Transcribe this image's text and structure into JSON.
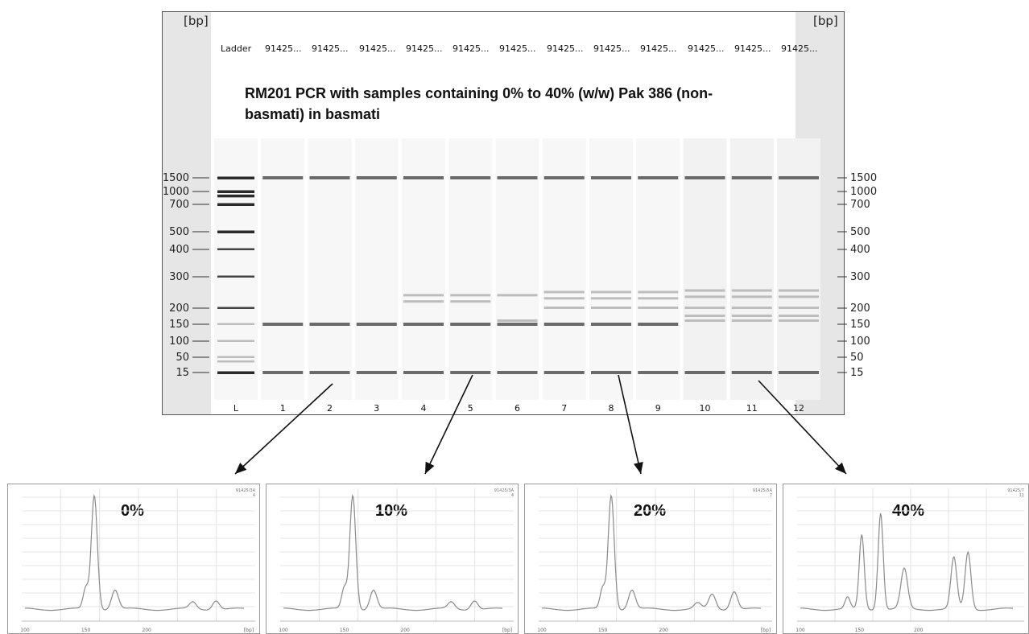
{
  "gel": {
    "unit_left": "[bp]",
    "unit_right": "[bp]",
    "header": [
      "Ladder",
      "91425...",
      "91425...",
      "91425...",
      "91425...",
      "91425...",
      "91425...",
      "91425...",
      "91425...",
      "91425...",
      "91425...",
      "91425...",
      "91425..."
    ],
    "title": "RM201 PCR with samples containing 0% to 40% (w/w) Pak 386 (non-basmati) in basmati",
    "title_line1": "RM201 PCR with samples containing 0% to 40% (w/w) Pak 386 (non-",
    "title_line2": "basmati) in basmati",
    "size_markers_bp": [
      1500,
      1000,
      700,
      500,
      400,
      300,
      200,
      150,
      100,
      50,
      15
    ],
    "size_labels": [
      "1500",
      "1000",
      "700",
      "500",
      "400",
      "300",
      "200",
      "150",
      "100",
      "50",
      "15"
    ],
    "lane_labels": [
      "L",
      "1",
      "2",
      "3",
      "4",
      "5",
      "6",
      "7",
      "8",
      "9",
      "10",
      "11",
      "12"
    ],
    "ladder_bands_bp": [
      1500,
      1000,
      900,
      700,
      500,
      400,
      300,
      200,
      150,
      100,
      50,
      40,
      15
    ],
    "lane_bands_bp": [
      [
        1500,
        150,
        15
      ],
      [
        1500,
        150,
        15
      ],
      [
        1500,
        150,
        15
      ],
      [
        1500,
        240,
        220,
        150,
        15
      ],
      [
        1500,
        240,
        220,
        150,
        15
      ],
      [
        1500,
        240,
        160,
        150,
        15
      ],
      [
        1500,
        250,
        230,
        200,
        150,
        15
      ],
      [
        1500,
        250,
        230,
        200,
        150,
        15
      ],
      [
        1500,
        250,
        230,
        200,
        150,
        15
      ],
      [
        1500,
        255,
        235,
        200,
        175,
        160,
        15
      ],
      [
        1500,
        255,
        235,
        200,
        175,
        160,
        15
      ],
      [
        1500,
        255,
        235,
        200,
        175,
        160,
        15
      ]
    ]
  },
  "electropherograms": [
    {
      "percent": "0%",
      "source_lane": "2",
      "corner_label": "91425/3A",
      "corner_sub": "4",
      "x_ticks": [
        "100",
        "150",
        "200",
        "[bp]"
      ]
    },
    {
      "percent": "10%",
      "source_lane": "5",
      "corner_label": "91425/3A",
      "corner_sub": "4",
      "x_ticks": [
        "100",
        "150",
        "200",
        "[bp]"
      ]
    },
    {
      "percent": "20%",
      "source_lane": "8",
      "corner_label": "91425/5A",
      "corner_sub": "7",
      "x_ticks": [
        "100",
        "150",
        "200",
        "[bp]"
      ]
    },
    {
      "percent": "40%",
      "source_lane": "11",
      "corner_label": "91425/7",
      "corner_sub": "11",
      "x_ticks": [
        "100",
        "150",
        "200"
      ]
    }
  ],
  "colors": {
    "band_dark": "#2a2a2a",
    "band_medium": "#6a6a6a",
    "band_light": "#bdbdbd",
    "panel_gray": "#e6e6e6",
    "trace": "#8a8a8a"
  }
}
